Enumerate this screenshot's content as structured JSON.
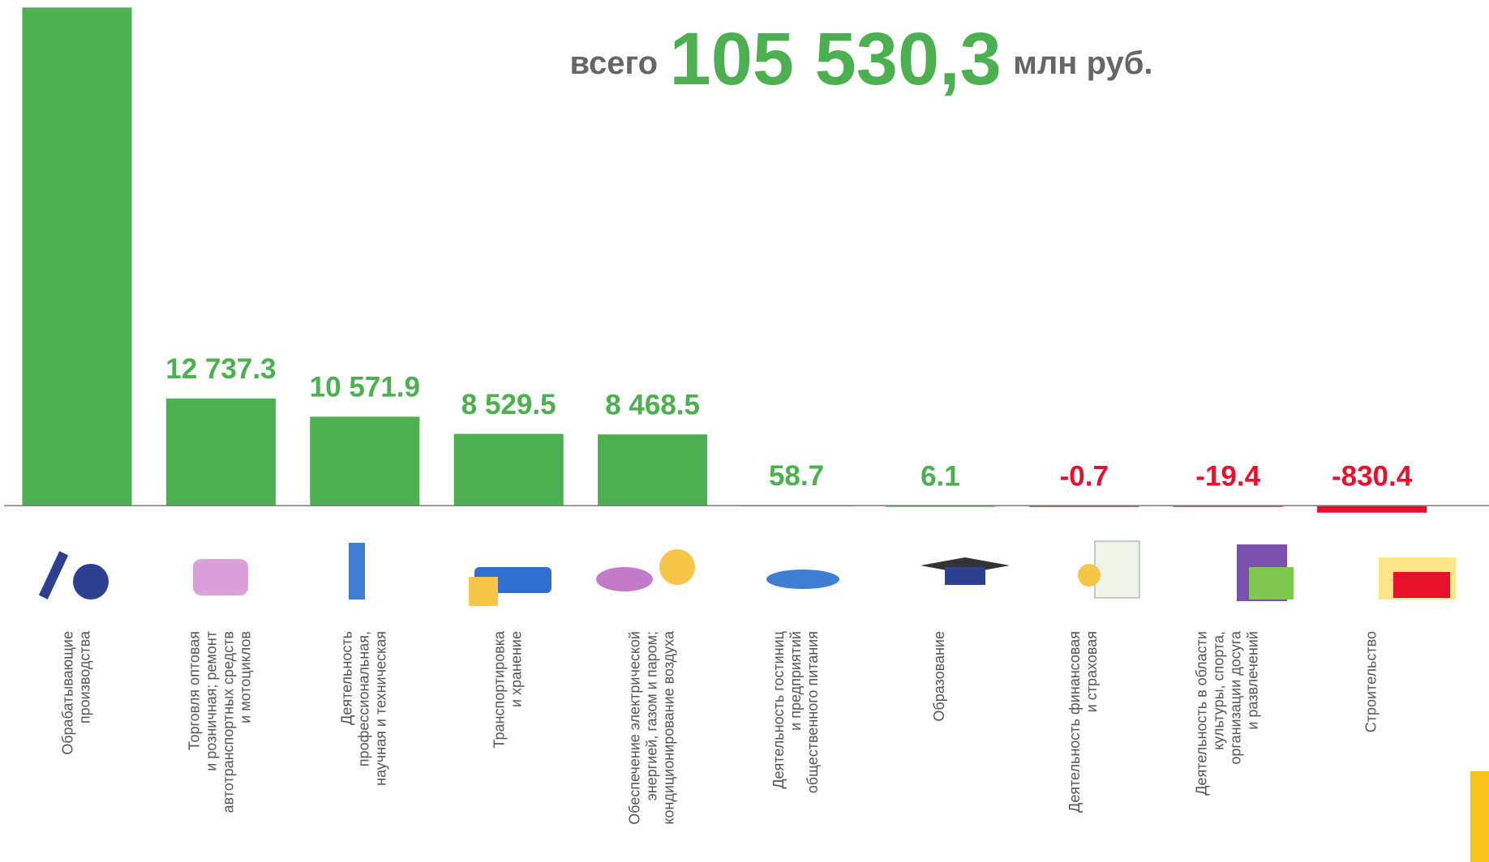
{
  "chart_data": {
    "type": "bar",
    "title_parts": [
      "всего",
      "105 530,3",
      "млн руб."
    ],
    "categories": [
      [
        "Обрабатывающие",
        "производства"
      ],
      [
        "Торговля оптовая",
        "и розничная; ремонт",
        "автотранспортных средств",
        "и мотоциклов"
      ],
      [
        "Деятельность",
        "профессиональная,",
        "научная и техническая"
      ],
      [
        "Транспортировка",
        "и хранение"
      ],
      [
        "Обеспечение электрической",
        "энергией, газом и паром;",
        "кондиционирование воздуха"
      ],
      [
        "Деятельность гостиниц",
        "и предприятий",
        "общественного питания"
      ],
      [
        "Образование"
      ],
      [
        "Деятельность финансовая",
        "и страховая"
      ],
      [
        "Деятельность в области",
        "культуры, спорта,",
        "организации досуга",
        "и развлечений"
      ],
      [
        "Строительство"
      ]
    ],
    "values": [
      59200,
      12737.3,
      10571.9,
      8529.5,
      8468.5,
      58.7,
      6.1,
      -0.7,
      -19.4,
      -830.4
    ],
    "value_labels": [
      null,
      "12 737.3",
      "10 571.9",
      "8 529.5",
      "8 468.5",
      "58.7",
      "6.1",
      "-0.7",
      "-19.4",
      "-830.4"
    ],
    "colors": [
      "#4caf50",
      "#4caf50",
      "#4caf50",
      "#4caf50",
      "#4caf50",
      "#4caf50",
      "#4caf50",
      "#e8112d",
      "#e8112d",
      "#e8112d"
    ],
    "ylim": [
      -10000,
      60000
    ]
  }
}
